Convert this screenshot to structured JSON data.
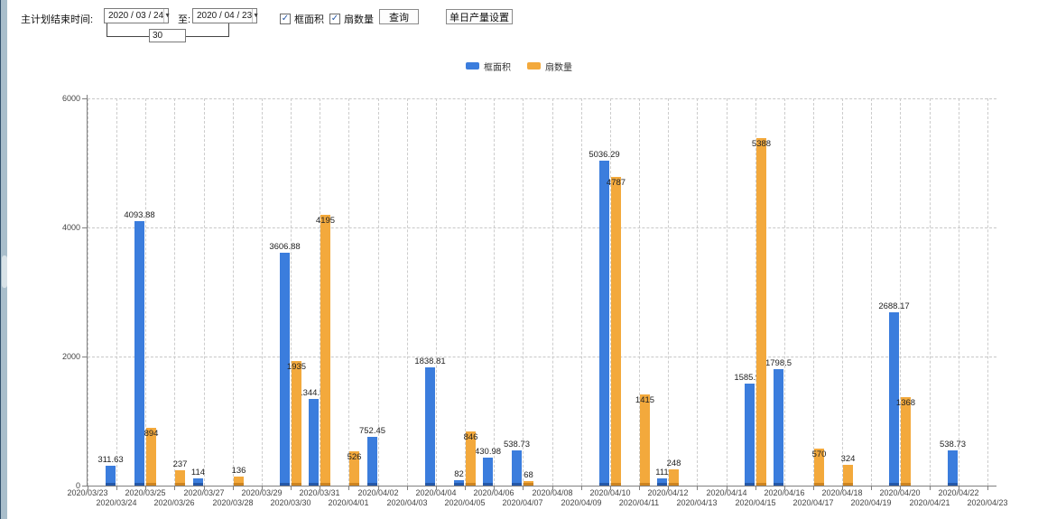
{
  "toolbar": {
    "label_end_time": "主计划结束时间:",
    "start_date": "2020 / 03 / 24",
    "label_to": "至:",
    "end_date": "2020 / 04 / 23",
    "span_days": "30",
    "checkbox_area_label": "框面积",
    "checkbox_fans_label": "扇数量",
    "checkbox_area_checked": "✓",
    "checkbox_fans_checked": "✓",
    "query_button": "查询",
    "daily_output_button": "单日产量设置",
    "dropdown_arrow": "▼"
  },
  "legend": {
    "items": [
      {
        "label": "框面积",
        "color": "#3b7ddd"
      },
      {
        "label": "扇数量",
        "color": "#f3a93c"
      }
    ]
  },
  "chart_data": {
    "type": "bar",
    "title": "",
    "xlabel": "",
    "ylabel": "",
    "ylim": [
      0,
      6000
    ],
    "yticks": [
      0,
      2000,
      4000,
      6000
    ],
    "grid": true,
    "legend_position": "top",
    "categories": [
      "2020/03/23",
      "2020/03/24",
      "2020/03/25",
      "2020/03/26",
      "2020/03/27",
      "2020/03/28",
      "2020/03/29",
      "2020/03/30",
      "2020/03/31",
      "2020/04/01",
      "2020/04/02",
      "2020/04/03",
      "2020/04/04",
      "2020/04/05",
      "2020/04/06",
      "2020/04/07",
      "2020/04/08",
      "2020/04/09",
      "2020/04/10",
      "2020/04/11",
      "2020/04/12",
      "2020/04/13",
      "2020/04/14",
      "2020/04/15",
      "2020/04/16",
      "2020/04/17",
      "2020/04/18",
      "2020/04/19",
      "2020/04/20",
      "2020/04/21",
      "2020/04/22",
      "2020/04/23"
    ],
    "series": [
      {
        "name": "框面积",
        "color": "#3b7ddd",
        "base_color": "#2558a8",
        "values": [
          null,
          311.63,
          4093.88,
          null,
          114,
          null,
          null,
          3606.88,
          1344.95,
          null,
          752.45,
          null,
          1838.81,
          82,
          430.98,
          538.73,
          null,
          null,
          5036.29,
          null,
          111,
          null,
          null,
          1585.96,
          1798.5,
          null,
          null,
          null,
          2688.17,
          null,
          538.73,
          null
        ]
      },
      {
        "name": "扇数量",
        "color": "#f3a93c",
        "base_color": "#cd8420",
        "values": [
          null,
          null,
          894,
          237,
          null,
          136,
          null,
          1935,
          4195,
          526,
          null,
          null,
          null,
          846,
          null,
          68,
          null,
          null,
          4787,
          1415,
          248,
          null,
          null,
          5388,
          null,
          570,
          324,
          null,
          1368,
          null,
          null,
          null
        ]
      }
    ]
  }
}
